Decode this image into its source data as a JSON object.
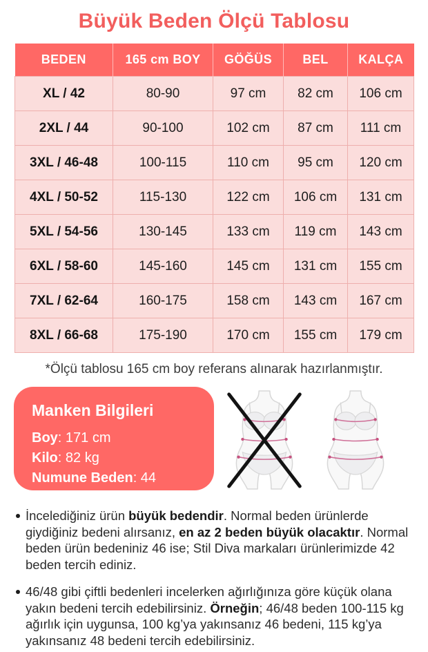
{
  "page": {
    "title": "Büyük Beden Ölçü Tablosu",
    "footnote": "*Ölçü tablosu 165 cm boy referans alınarak hazırlanmıştır."
  },
  "table": {
    "headers": [
      "BEDEN",
      "165 cm BOY",
      "GÖĞÜS",
      "BEL",
      "KALÇA"
    ],
    "rows": [
      [
        "XL / 42",
        "80-90",
        "97 cm",
        "82 cm",
        "106 cm"
      ],
      [
        "2XL / 44",
        "90-100",
        "102 cm",
        "87 cm",
        "111 cm"
      ],
      [
        "3XL / 46-48",
        "100-115",
        "110 cm",
        "95 cm",
        "120 cm"
      ],
      [
        "4XL / 50-52",
        "115-130",
        "122 cm",
        "106 cm",
        "131 cm"
      ],
      [
        "5XL / 54-56",
        "130-145",
        "133 cm",
        "119 cm",
        "143 cm"
      ],
      [
        "6XL / 58-60",
        "145-160",
        "145 cm",
        "131 cm",
        "155 cm"
      ],
      [
        "7XL / 62-64",
        "160-175",
        "158 cm",
        "143 cm",
        "167 cm"
      ],
      [
        "8XL / 66-68",
        "175-190",
        "170 cm",
        "155 cm",
        "179 cm"
      ]
    ]
  },
  "model_info": {
    "title": "Manken Bilgileri",
    "lines": [
      {
        "label": "Boy",
        "value": "171 cm"
      },
      {
        "label": "Kilo",
        "value": "82 kg"
      },
      {
        "label": "Numune Beden",
        "value": "44"
      }
    ]
  },
  "figures": {
    "left": "body-measurement-figure-crossed",
    "right": "body-measurement-figure"
  },
  "notes": [
    {
      "segments": [
        {
          "text": "İncelediğiniz ürün ",
          "bold": false
        },
        {
          "text": "büyük bedendir",
          "bold": true
        },
        {
          "text": ". Normal beden ürünlerde giydiğiniz bedeni alırsanız, ",
          "bold": false
        },
        {
          "text": "en az 2 beden büyük olacaktır",
          "bold": true
        },
        {
          "text": ". Normal beden ürün bedeniniz 46 ise; Stil Diva markaları ürünlerimizde 42 beden tercih ediniz.",
          "bold": false
        }
      ]
    },
    {
      "segments": [
        {
          "text": "46/48 gibi çiftli bedenleri incelerken ağırlığınıza göre küçük olana yakın bedeni tercih edebilirsiniz. ",
          "bold": false
        },
        {
          "text": "Örneğin",
          "bold": true
        },
        {
          "text": "; 46/48 beden 100-115 kg ağırlık için uygunsa, 100 kg’ya yakınsanız 46 bedeni, 115 kg’ya yakınsanız 48 bedeni tercih edebilirsiniz.",
          "bold": false
        }
      ]
    }
  ],
  "colors": {
    "coral": "#ff6865",
    "title_coral": "#f25e5d",
    "row_pink": "#fbdddc",
    "grid_pink": "#eeafad",
    "measure_line_pink": "#cf6f97"
  }
}
